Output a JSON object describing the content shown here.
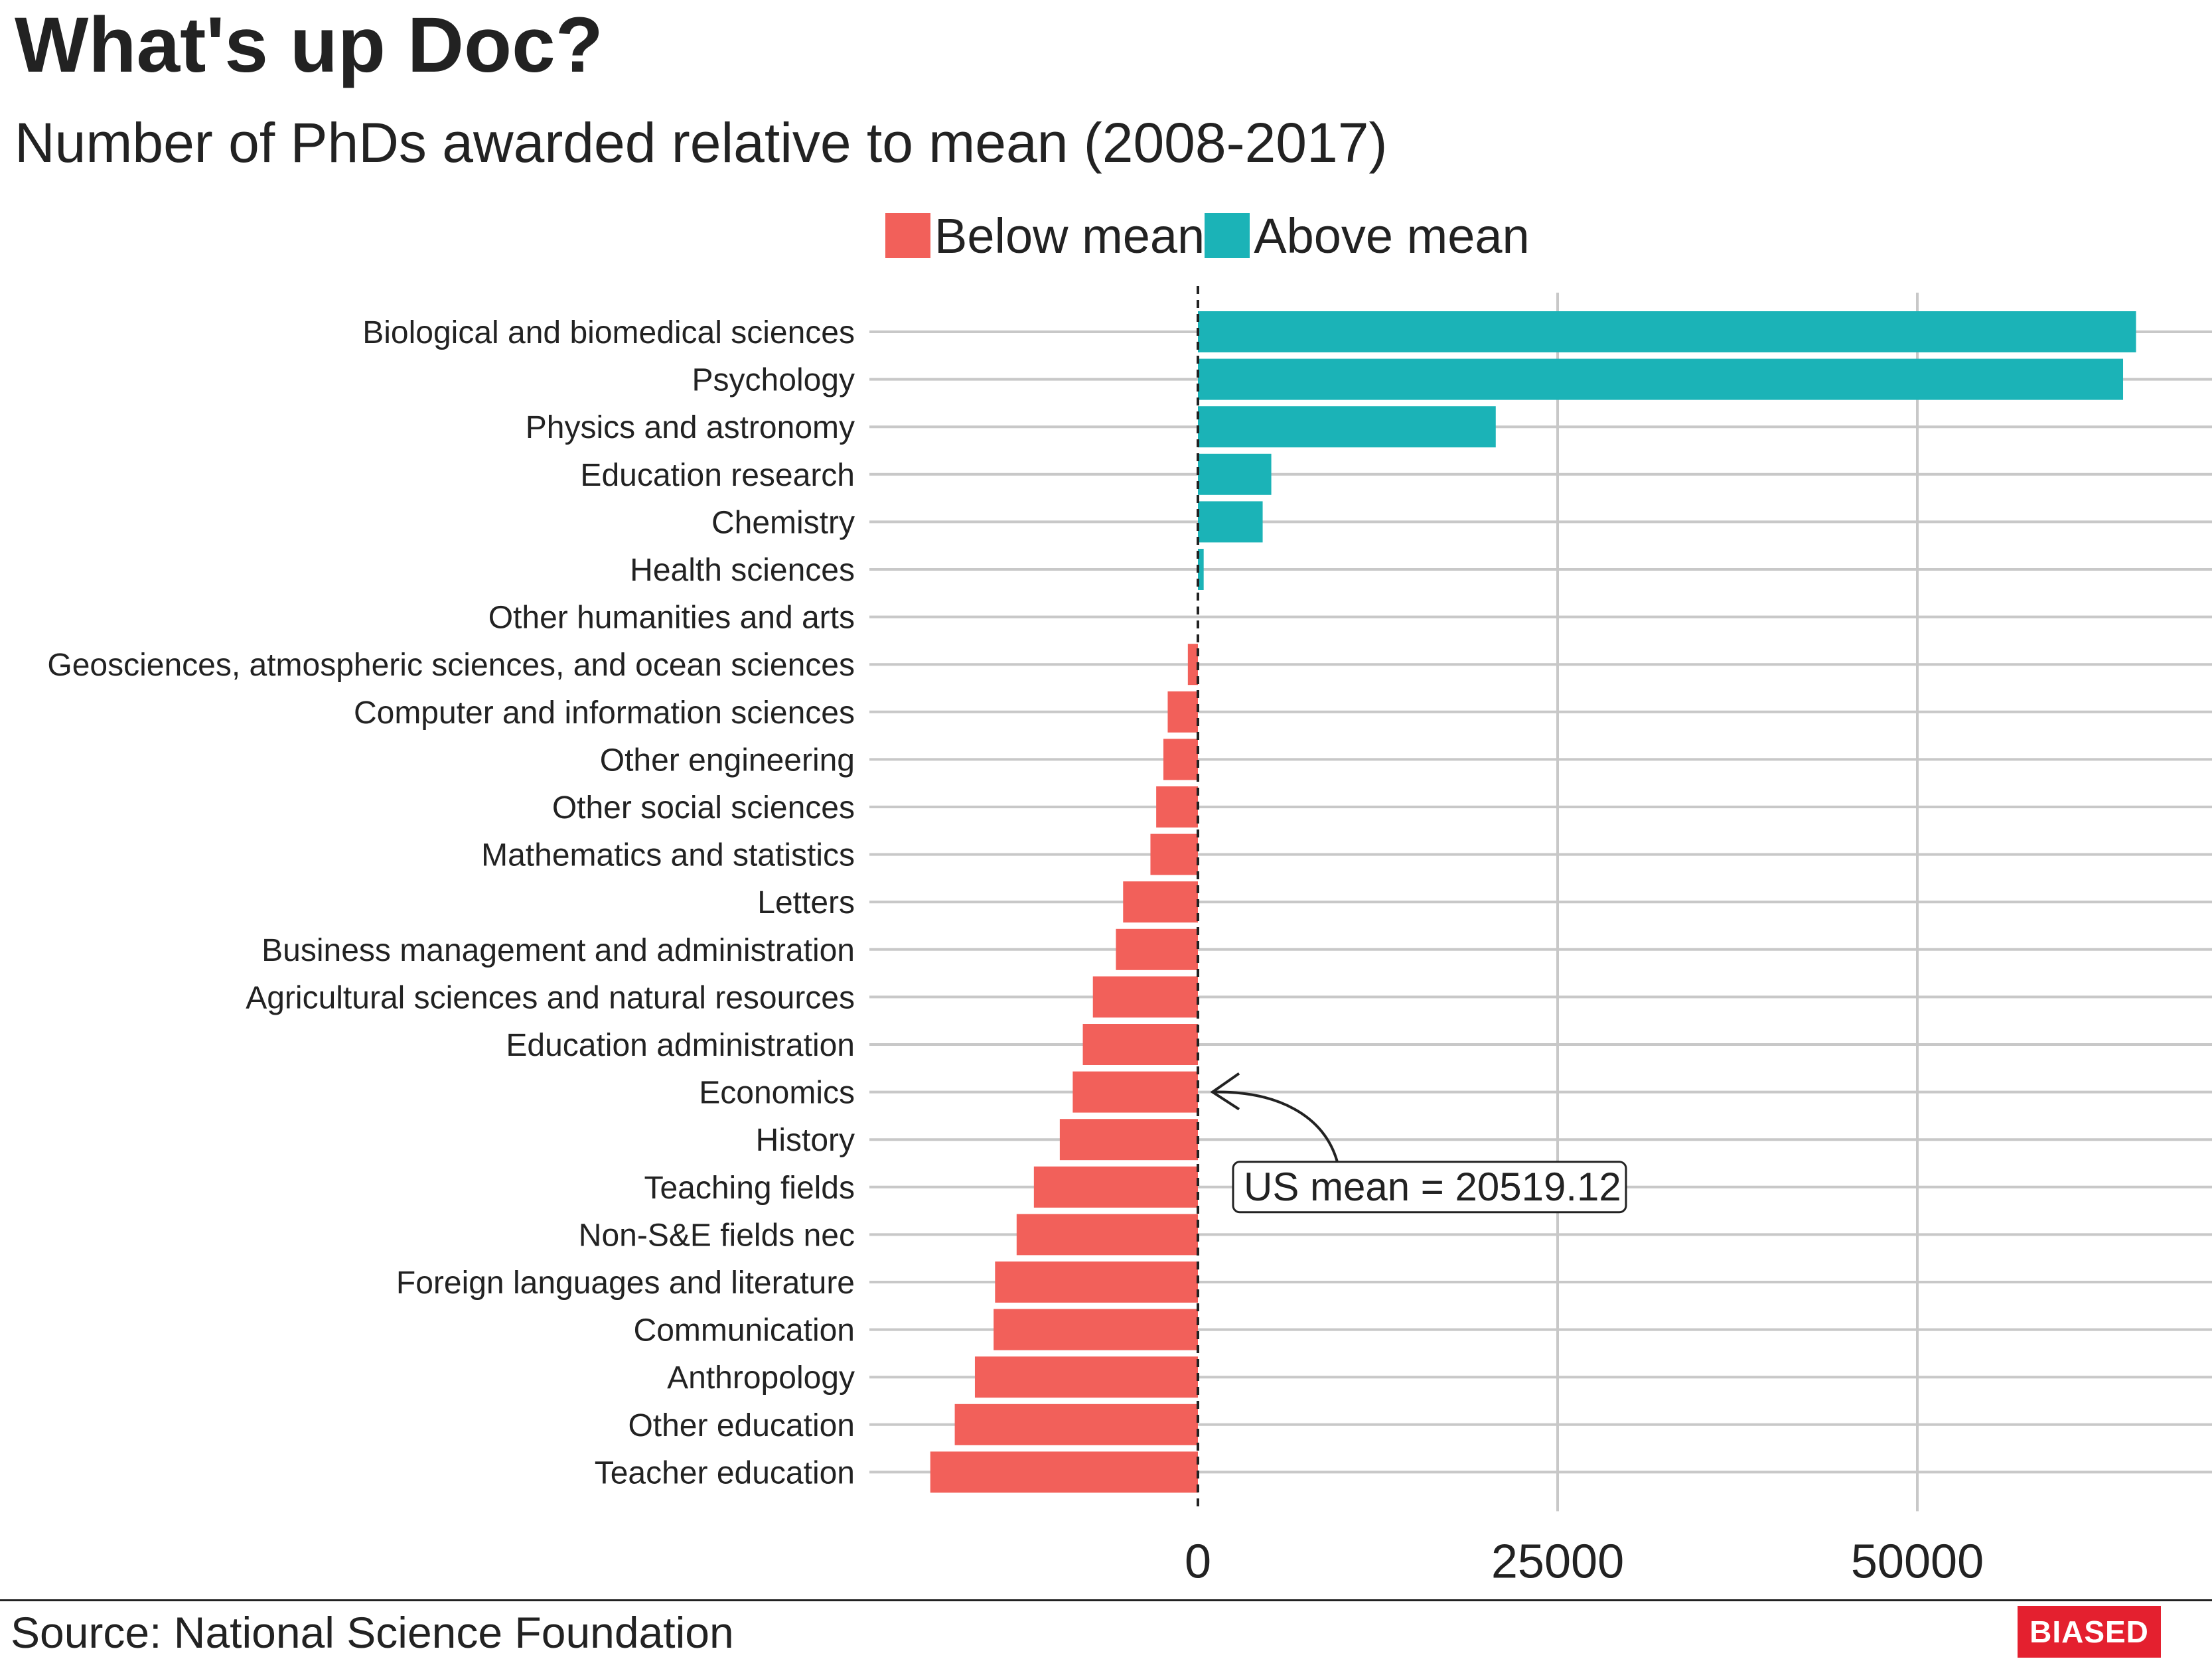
{
  "title": "What's up Doc?",
  "subtitle": "Number of PhDs awarded relative to mean (2008-2017)",
  "legend": {
    "below_label": "Below mean",
    "above_label": "Above mean"
  },
  "colors": {
    "below": "#f2605a",
    "above": "#1bb3b7"
  },
  "annotation": {
    "label": "US mean = 20519.12"
  },
  "source": "Source: National Science Foundation",
  "brand": "BIASED",
  "chart_data": {
    "type": "bar",
    "orientation": "horizontal",
    "title": "What's up Doc?",
    "subtitle": "Number of PhDs awarded relative to mean (2008-2017)",
    "xlabel": "",
    "ylabel": "",
    "xlim": [
      -23500,
      69000
    ],
    "xticks": [
      0,
      25000,
      50000
    ],
    "xtick_labels": [
      "0",
      "25000",
      "50000"
    ],
    "grid": true,
    "legend_position": "top",
    "categories": [
      "Biological and biomedical sciences",
      "Psychology",
      "Physics and astronomy",
      "Education research",
      "Chemistry",
      "Health sciences",
      "Other humanities and arts",
      "Geosciences, atmospheric sciences, and ocean sciences",
      "Computer and information sciences",
      "Other engineering",
      "Other social sciences",
      "Mathematics and statistics",
      "Letters",
      "Business management and administration",
      "Agricultural sciences and natural resources",
      "Education administration",
      "Economics",
      "History",
      "Teaching fields",
      "Non-S&E fields nec",
      "Foreign languages and literature",
      "Communication",
      "Anthropology",
      "Other education",
      "Teacher education"
    ],
    "values": [
      65200,
      64300,
      20700,
      5100,
      4500,
      400,
      0,
      -700,
      -2100,
      -2400,
      -2900,
      -3300,
      -5200,
      -5700,
      -7300,
      -8000,
      -8700,
      -9600,
      -11400,
      -12600,
      -14100,
      -14200,
      -15500,
      -16900,
      -18600
    ],
    "series": [
      {
        "name": "Below mean",
        "color": "#f2605a"
      },
      {
        "name": "Above mean",
        "color": "#1bb3b7"
      }
    ],
    "reference_line": {
      "value": 0,
      "style": "dashed",
      "label": "US mean = 20519.12"
    }
  }
}
